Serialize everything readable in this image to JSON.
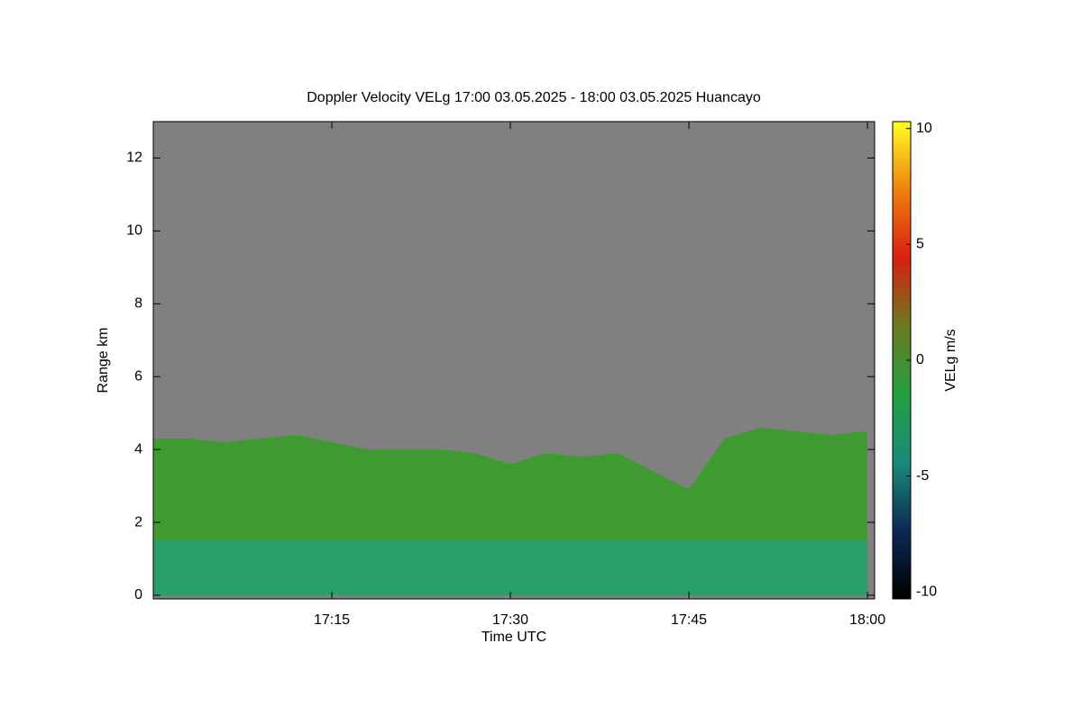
{
  "chart_data": {
    "type": "area",
    "title": "Doppler Velocity VELg   17:00 03.05.2025 - 18:00 03.05.2025 Huancayo",
    "x_label": "Time UTC",
    "y_label": "Range km",
    "x": [
      "17:00",
      "17:03",
      "17:06",
      "17:09",
      "17:12",
      "17:15",
      "17:18",
      "17:21",
      "17:24",
      "17:27",
      "17:30",
      "17:33",
      "17:36",
      "17:39",
      "17:42",
      "17:45",
      "17:48",
      "17:51",
      "17:54",
      "17:57",
      "18:00"
    ],
    "series": [
      {
        "color": "#3f9a32",
        "values": [
          4.3,
          4.3,
          4.2,
          4.3,
          4.4,
          4.2,
          4.0,
          4.0,
          4.0,
          3.9,
          3.6,
          3.9,
          3.8,
          3.9,
          3.4,
          2.9,
          4.3,
          4.6,
          4.5,
          4.4,
          4.5
        ]
      },
      {
        "color": "#2b9f6a",
        "values": [
          1.5,
          1.5,
          1.5,
          1.5,
          1.5,
          1.5,
          1.5,
          1.5,
          1.5,
          1.5,
          1.5,
          1.5,
          1.5,
          1.5,
          1.5,
          1.5,
          1.5,
          1.5,
          1.5,
          1.5,
          1.5
        ]
      }
    ],
    "xlim": [
      "17:00:00",
      "18:00:36"
    ],
    "xticks": [
      "17:15",
      "17:30",
      "17:45",
      "18:00"
    ],
    "ylim": [
      -0.1,
      13
    ],
    "yticks": [
      0,
      2,
      4,
      6,
      8,
      10,
      12
    ],
    "background_color": "#808080",
    "colorbar": {
      "label": "VELg m/s",
      "lim": [
        -10.3,
        10.3
      ],
      "ticks": [
        -10,
        -5,
        0,
        5,
        10
      ],
      "colors": [
        "#000000",
        "#0b2a55",
        "#1a8a7a",
        "#22a040",
        "#6a7a20",
        "#d82010",
        "#f08010",
        "#ffff20"
      ]
    }
  }
}
